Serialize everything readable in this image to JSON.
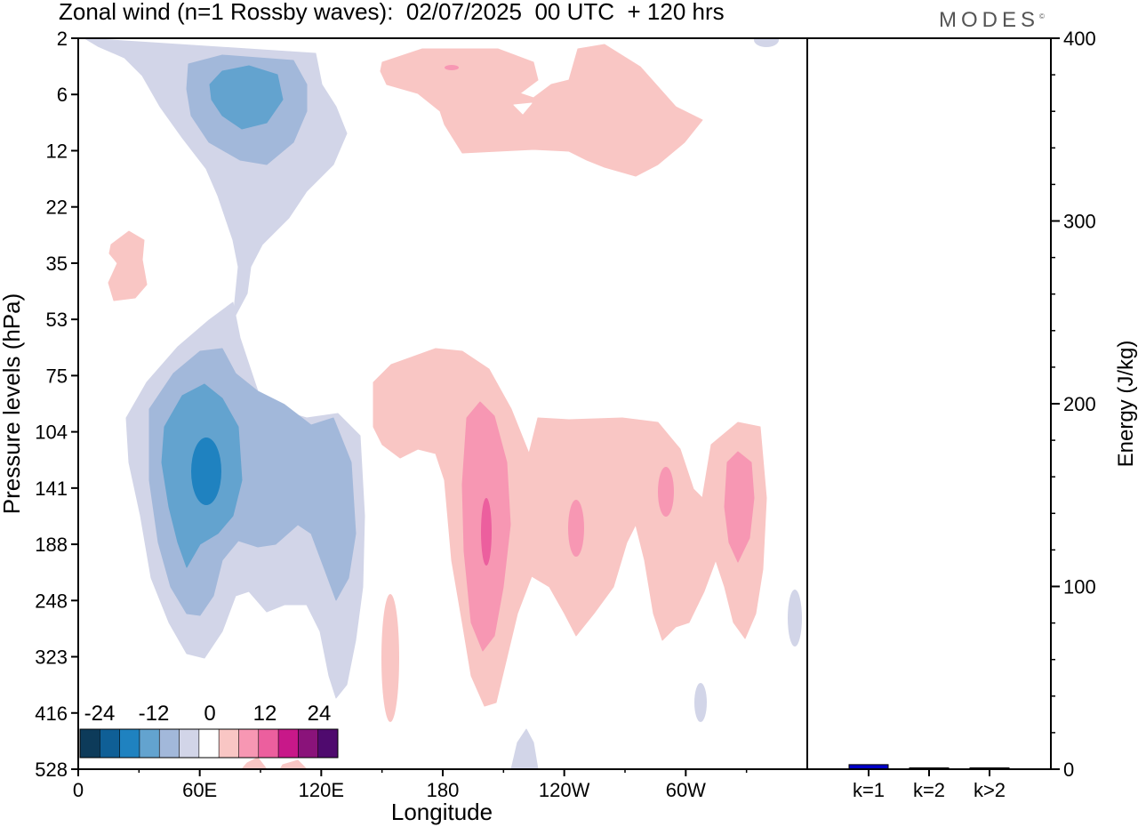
{
  "title": "Zonal wind (n=1 Rossby waves):  02/07/2025  00 UTC  + 120 hrs",
  "logo": "MODES",
  "logo_mark": "©",
  "colors": {
    "neg": [
      "#0d3b5a",
      "#0f5f96",
      "#1f82c0",
      "#63a3cf",
      "#a2b8da",
      "#d2d5e8"
    ],
    "zero": "#ffffff",
    "pos": [
      "#f9c6c4",
      "#f797b3",
      "#ec5f9e",
      "#c81889",
      "#8a137a",
      "#4f0a6e"
    ],
    "bar": "#0000c8"
  },
  "chart_data": [
    {
      "type": "heatmap",
      "title": "Zonal wind (n=1 Rossby waves):  02/07/2025  00 UTC  + 120 hrs",
      "xlabel": "Longitude",
      "ylabel": "Pressure levels (hPa)",
      "x_ticks": [
        "0",
        "60E",
        "120E",
        "180",
        "120W",
        "60W"
      ],
      "x_tick_values": [
        0,
        60,
        120,
        180,
        240,
        300
      ],
      "xlim": [
        0,
        360
      ],
      "y_ticks": [
        "2",
        "6",
        "12",
        "22",
        "35",
        "53",
        "75",
        "104",
        "141",
        "188",
        "248",
        "323",
        "416",
        "528"
      ],
      "colorbar_labels": [
        "-24",
        "-12",
        "0",
        "12",
        "24"
      ],
      "colorbar_levels": [
        -30,
        -24,
        -18,
        -12,
        -6,
        -3,
        3,
        6,
        12,
        18,
        24,
        30
      ]
    },
    {
      "type": "bar",
      "ylabel": "Energy (J/kg)",
      "categories": [
        "k=1",
        "k=2",
        "k>2"
      ],
      "values": [
        2.5,
        0.5,
        0.5
      ],
      "ylim": [
        0,
        400
      ],
      "y_ticks": [
        0,
        100,
        200,
        300,
        400
      ]
    }
  ]
}
